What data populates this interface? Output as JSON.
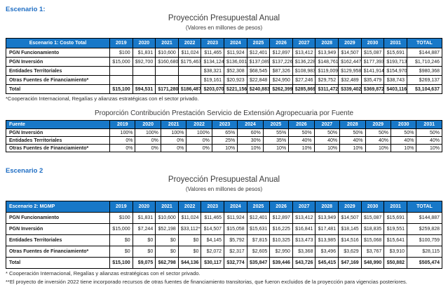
{
  "colors": {
    "table_header_bg": "#1878c8",
    "table_header_text": "#ffffff",
    "section_heading_text": "#1f6ec4",
    "title_text": "#3b3b3b"
  },
  "scenario1": {
    "heading": "Escenario 1:",
    "title": "Proyección Presupuestal Anual",
    "subtitle": "(Valores en millones de pesos)",
    "footnote": "*Cooperación Internacional, Regalías y alianzas estratégicas con el sector privado.",
    "table": {
      "columns": [
        "Escenario 1: Costo Total",
        "2019",
        "2020",
        "2021",
        "2022",
        "2023",
        "2024",
        "2025",
        "2026",
        "2027",
        "2028",
        "2029",
        "2030",
        "2031",
        "TOTAL"
      ],
      "rows": [
        {
          "label": "PGN Funcionamiento",
          "total": false,
          "values": [
            "$100",
            "$1,831",
            "$10,600",
            "$11,024",
            "$11,465",
            "$11,924",
            "$12,401",
            "$12,897",
            "$13,412",
            "$13,949",
            "$14,507",
            "$15,087",
            "$15,691",
            "$144,887"
          ]
        },
        {
          "label": "PGN Inversión",
          "total": false,
          "values": [
            "$15,000",
            "$92,700",
            "$160,680",
            "$175,463",
            "$134,124",
            "$136,001",
            "$137,089",
            "$137,226",
            "$136,228",
            "$148,761",
            "$162,447",
            "$177,393",
            "$193,713",
            "$1,710,246"
          ]
        },
        {
          "label": "Entidades Territoriales",
          "total": false,
          "values": [
            "",
            "",
            "",
            "",
            "$38,321",
            "$52,308",
            "$68,545",
            "$87,326",
            "$108,983",
            "$119,009",
            "$129,958",
            "$141,914",
            "$154,970",
            "$980,368"
          ]
        },
        {
          "label": "Otras Fuentes de Financiamiento*",
          "total": false,
          "values": [
            "",
            "",
            "",
            "",
            "$19,161",
            "$20,923",
            "$22,848",
            "$24,950",
            "$27,246",
            "$29,752",
            "$32,489",
            "$35,479",
            "$38,743",
            "$269,137"
          ]
        },
        {
          "label": "Total",
          "total": true,
          "values": [
            "$15,100",
            "$94,531",
            "$171,280",
            "$186,487",
            "$203,070",
            "$221,156",
            "$240,883",
            "$262,399",
            "$285,869",
            "$311,472",
            "$339,402",
            "$369,872",
            "$403,116",
            "$3,104,637"
          ]
        }
      ]
    }
  },
  "proportion": {
    "title": "Proporción Contribución Prestación Servicio de Extensión Agropecuaria por Fuente",
    "table": {
      "columns": [
        "Fuente",
        "2019",
        "2020",
        "2021",
        "2022",
        "2023",
        "2024",
        "2025",
        "2026",
        "2027",
        "2028",
        "2029",
        "2030",
        "2031"
      ],
      "rows": [
        {
          "label": "PGN Inversión",
          "total": false,
          "values": [
            "100%",
            "100%",
            "100%",
            "100%",
            "65%",
            "60%",
            "55%",
            "50%",
            "50%",
            "50%",
            "50%",
            "50%",
            "50%"
          ]
        },
        {
          "label": "Entidades Territoriales",
          "total": false,
          "values": [
            "0%",
            "0%",
            "0%",
            "0%",
            "25%",
            "30%",
            "35%",
            "40%",
            "40%",
            "40%",
            "40%",
            "40%",
            "40%"
          ]
        },
        {
          "label": "Otras Fuentes de Financiamiento*",
          "total": false,
          "values": [
            "0%",
            "0%",
            "0%",
            "0%",
            "10%",
            "10%",
            "10%",
            "10%",
            "10%",
            "10%",
            "10%",
            "10%",
            "10%"
          ]
        }
      ]
    }
  },
  "scenario2": {
    "heading": "Escenario 2",
    "title": "Proyección Presupuestal Anual",
    "subtitle": "(Valores en millones de pesos)",
    "footnote1": "* Cooperación Internacional, Regalías y alianzas estratégicas con el sector privado.",
    "footnote2": "**El proyecto de inversión 2022 tiene incorporado recursos de otras fuentes de financiamiento transitorias, que fueron excluidos de la proyección para vigencias posteriores.",
    "table": {
      "columns": [
        "Escenario 2: MGMP",
        "2019",
        "2020",
        "2021",
        "2022",
        "2023",
        "2024",
        "2025",
        "2026",
        "2027",
        "2028",
        "2029",
        "2030",
        "2031",
        "TOTAL"
      ],
      "rows": [
        {
          "label": "PGN Funcionamiento",
          "total": false,
          "values": [
            "$100",
            "$1,831",
            "$10,600",
            "$11,024",
            "$11,465",
            "$11,924",
            "$12,401",
            "$12,897",
            "$13,412",
            "$13,949",
            "$14,507",
            "$15,087",
            "$15,691",
            "$144,887"
          ]
        },
        {
          "label": "PGN Inversión",
          "total": false,
          "values": [
            "$15,000",
            "$7,244",
            "$52,198",
            "$33,112**",
            "$14,507",
            "$15,058",
            "$15,631",
            "$16,225",
            "$16,841",
            "$17,481",
            "$18,145",
            "$18,835",
            "$19,551",
            "$259,828"
          ]
        },
        {
          "label": "Entidades Territoriales",
          "total": false,
          "values": [
            "$0",
            "$0",
            "$0",
            "$0",
            "$4,145",
            "$5,792",
            "$7,815",
            "$10,325",
            "$13,473",
            "$13,985",
            "$14,516",
            "$15,068",
            "$15,641",
            "$100,759"
          ]
        },
        {
          "label": "Otras Fuentes de Financiamiento*",
          "total": false,
          "values": [
            "$0",
            "$0",
            "$0",
            "$0",
            "$2,072",
            "$2,317",
            "$2,605",
            "$2,950",
            "$3,368",
            "$3,496",
            "$3,629",
            "$3,767",
            "$3,910",
            "$28,115"
          ]
        },
        {
          "label": "Total",
          "total": true,
          "values": [
            "$15,100",
            "$9,075",
            "$62,798",
            "$44,136",
            "$30,117",
            "$32,774",
            "$35,847",
            "$39,446",
            "$43,726",
            "$45,415",
            "$47,169",
            "$48,990",
            "$50,882",
            "$505,474"
          ]
        }
      ]
    }
  }
}
